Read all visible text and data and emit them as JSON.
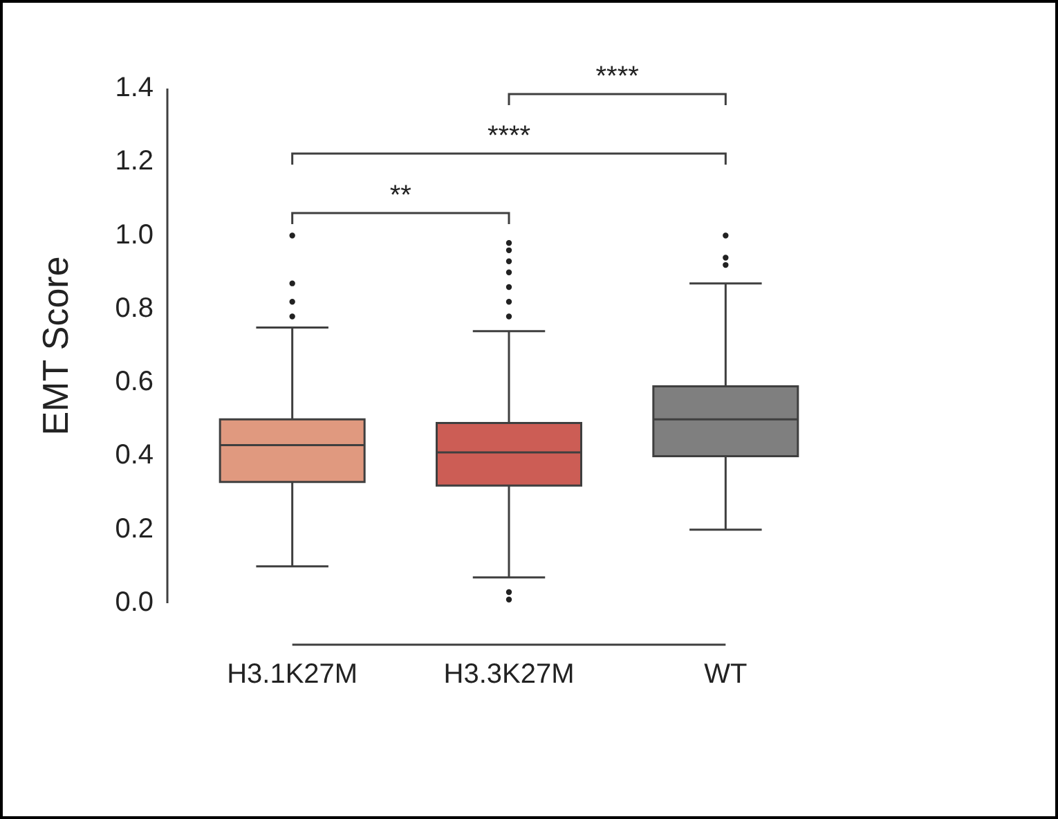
{
  "chart_data": {
    "type": "box",
    "ylabel": "EMT Score",
    "categories": [
      "H3.1K27M",
      "H3.3K27M",
      "WT"
    ],
    "colors": [
      "#e0997f",
      "#cc5d55",
      "#7f7f7f"
    ],
    "boxes": [
      {
        "low": 0.1,
        "q1": 0.33,
        "median": 0.43,
        "q3": 0.5,
        "high": 0.75,
        "outliers": [
          0.78,
          0.82,
          0.87,
          1.0
        ]
      },
      {
        "low": 0.07,
        "q1": 0.32,
        "median": 0.41,
        "q3": 0.49,
        "high": 0.74,
        "outliers": [
          0.01,
          0.03,
          0.78,
          0.82,
          0.86,
          0.9,
          0.93,
          0.96,
          0.98
        ]
      },
      {
        "low": 0.2,
        "q1": 0.4,
        "median": 0.5,
        "q3": 0.59,
        "high": 0.87,
        "outliers": [
          0.92,
          0.94,
          1.0
        ]
      }
    ],
    "ylim": [
      0,
      1.4
    ],
    "yticks": [
      {
        "value": 0,
        "label": "0.0"
      },
      {
        "value": 0.2,
        "label": "0.2"
      },
      {
        "value": 0.4,
        "label": "0.4"
      },
      {
        "value": 0.6,
        "label": "0.6"
      },
      {
        "value": 0.8,
        "label": "0.8"
      },
      {
        "value": 1.0,
        "label": "1.0"
      },
      {
        "value": 1.2,
        "label": "1.2"
      },
      {
        "value": 1.4,
        "label": "1.4"
      }
    ],
    "annotations": [
      "**",
      "****",
      "****"
    ],
    "grid": false,
    "legend": false
  }
}
